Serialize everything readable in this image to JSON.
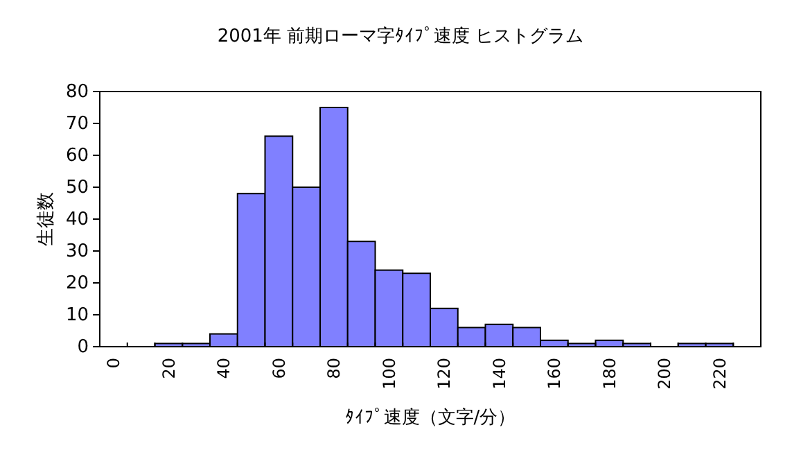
{
  "chart_data": {
    "type": "bar",
    "title": "2001年 前期ローマ字ﾀｲﾌﾟ速度 ヒストグラム",
    "xlabel": "ﾀｲﾌﾟ速度（文字/分）",
    "ylabel": "生徒数",
    "categories": [
      "0",
      null,
      "20",
      null,
      "40",
      null,
      "60",
      null,
      "80",
      null,
      "100",
      null,
      "120",
      null,
      "140",
      null,
      "160",
      null,
      "180",
      null,
      "200",
      null,
      "220",
      null
    ],
    "values": [
      0,
      0,
      1,
      1,
      4,
      48,
      66,
      50,
      75,
      33,
      24,
      23,
      12,
      6,
      7,
      6,
      2,
      1,
      2,
      1,
      0,
      1,
      1,
      0
    ],
    "color": "#8080ff",
    "ylim": [
      0,
      80
    ],
    "yticks": [
      0,
      10,
      20,
      30,
      40,
      50,
      60,
      70,
      80
    ],
    "grid": false
  }
}
